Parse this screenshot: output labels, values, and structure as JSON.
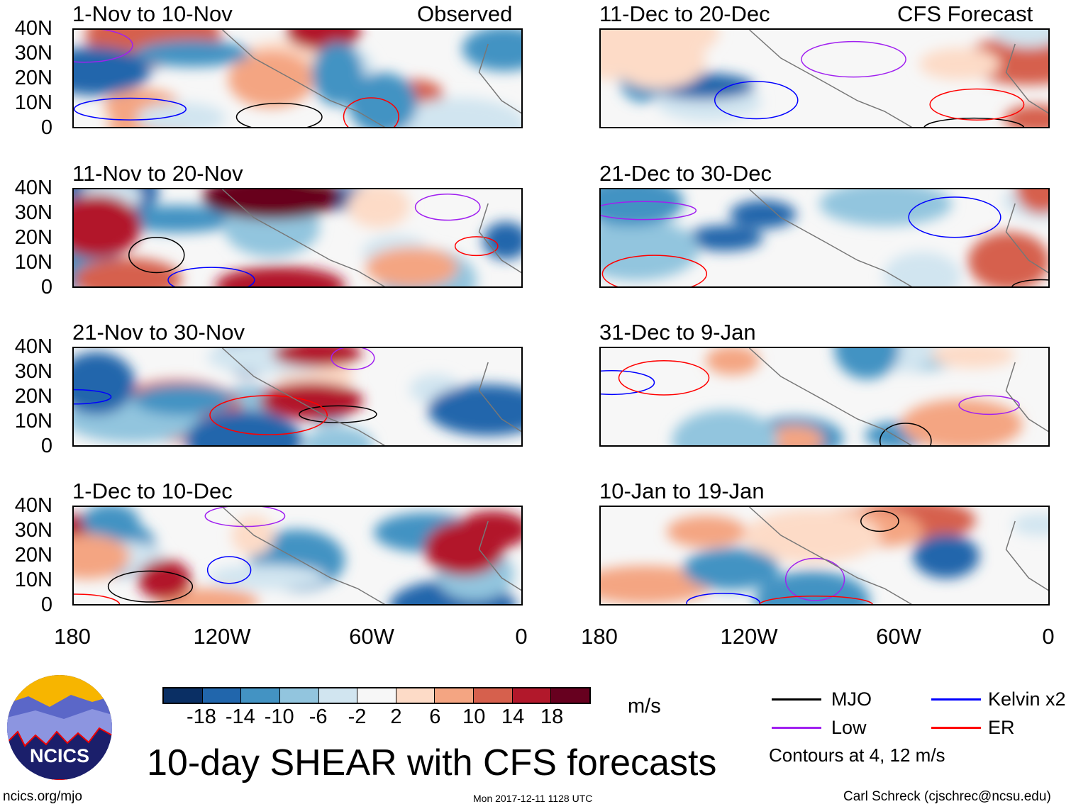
{
  "header": {
    "left_label": "Observed",
    "right_label": "CFS Forecast"
  },
  "panels": [
    {
      "title": "1-Nov to 10-Nov",
      "group": "observed"
    },
    {
      "title": "11-Nov to 20-Nov",
      "group": "observed"
    },
    {
      "title": "21-Nov to 30-Nov",
      "group": "observed"
    },
    {
      "title": "1-Dec to 10-Dec",
      "group": "observed"
    },
    {
      "title": "11-Dec to 20-Dec",
      "group": "forecast"
    },
    {
      "title": "21-Dec to 30-Dec",
      "group": "forecast"
    },
    {
      "title": "31-Dec to 9-Jan",
      "group": "forecast"
    },
    {
      "title": "10-Jan to 19-Jan",
      "group": "forecast"
    }
  ],
  "y_ticks": [
    "40N",
    "30N",
    "20N",
    "10N",
    "0"
  ],
  "x_ticks": [
    "180",
    "120W",
    "60W",
    "0"
  ],
  "colorbar": {
    "colors": [
      "#0a2f64",
      "#2166ac",
      "#4393c3",
      "#92c5de",
      "#d1e5f0",
      "#f7f7f7",
      "#fddbc7",
      "#f4a582",
      "#d6604d",
      "#b2182b",
      "#67001f"
    ],
    "labels": [
      "-18",
      "-14",
      "-10",
      "-6",
      "-2",
      "2",
      "6",
      "10",
      "14",
      "18"
    ],
    "units": "m/s"
  },
  "legend": {
    "items": [
      {
        "label": "MJO",
        "color": "#000000"
      },
      {
        "label": "Kelvin x2",
        "color": "#0000ff"
      },
      {
        "label": "Low",
        "color": "#a020f0"
      },
      {
        "label": "ER",
        "color": "#ff0000"
      }
    ],
    "note": "Contours at 4, 12 m/s"
  },
  "title": "10-day SHEAR with CFS forecasts",
  "logo_text": "NCICS",
  "footer": {
    "url": "ncics.org/mjo",
    "timestamp": "Mon 2017-12-11 1128 UTC",
    "credit": "Carl Schreck (cjschrec@ncsu.edu)"
  }
}
